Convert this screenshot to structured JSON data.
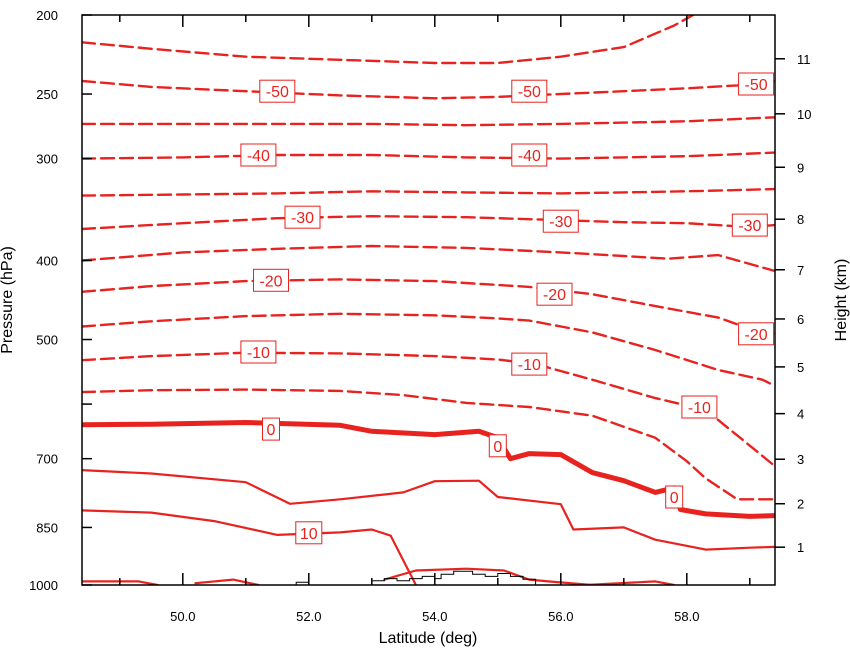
{
  "chart_data": {
    "type": "contour",
    "title": "",
    "xlabel": "Latitude (deg)",
    "ylabel": "Pressure (hPa)",
    "y2label": "Height (km)",
    "xlim": [
      48.4,
      59.4
    ],
    "ylim": [
      1000,
      200
    ],
    "yscale": "log",
    "x_ticks": [
      50,
      52,
      54,
      56,
      58
    ],
    "x_tick_labels": [
      "50.0",
      "52.0",
      "54.0",
      "56.0",
      "58.0"
    ],
    "y_ticks": [
      200,
      250,
      300,
      400,
      500,
      700,
      850,
      1000
    ],
    "y_tick_labels": [
      "200",
      "250",
      "300",
      "400",
      "500",
      "700",
      "850",
      "1000"
    ],
    "y2_ticks": [
      1,
      2,
      3,
      4,
      5,
      6,
      7,
      8,
      9,
      10,
      11
    ],
    "y2_tick_labels": [
      "1",
      "2",
      "3",
      "4",
      "5",
      "6",
      "7",
      "8",
      "9",
      "10",
      "11"
    ],
    "line_color": "#e8231f",
    "terrain_color": "#000000",
    "grid": false,
    "contours": [
      {
        "level": -55,
        "style": "dashed",
        "points": [
          [
            48.4,
            216
          ],
          [
            49.5,
            220
          ],
          [
            51,
            225
          ],
          [
            52.5,
            227
          ],
          [
            54,
            229
          ],
          [
            55,
            229
          ],
          [
            56,
            225
          ],
          [
            57,
            219
          ],
          [
            57.8,
            206
          ],
          [
            58.1,
            200
          ]
        ]
      },
      {
        "level": -50,
        "style": "dashed",
        "points": [
          [
            48.4,
            241
          ],
          [
            49.5,
            245
          ],
          [
            51,
            248
          ],
          [
            52.5,
            251
          ],
          [
            54,
            253
          ],
          [
            55,
            252
          ],
          [
            56,
            250
          ],
          [
            57,
            248
          ],
          [
            58,
            246
          ],
          [
            58.8,
            244
          ],
          [
            59.4,
            241
          ]
        ]
      },
      {
        "level": -45,
        "style": "dashed",
        "points": [
          [
            48.4,
            272
          ],
          [
            50,
            272
          ],
          [
            51.5,
            272
          ],
          [
            53,
            272
          ],
          [
            54.5,
            273
          ],
          [
            56,
            272
          ],
          [
            57,
            271
          ],
          [
            58,
            270
          ],
          [
            59.4,
            267
          ]
        ]
      },
      {
        "level": -40,
        "style": "dashed",
        "points": [
          [
            48.4,
            300
          ],
          [
            50,
            299
          ],
          [
            51.5,
            297
          ],
          [
            53,
            297
          ],
          [
            54.5,
            299
          ],
          [
            56,
            300
          ],
          [
            57,
            299
          ],
          [
            58,
            298
          ],
          [
            59.4,
            295
          ]
        ]
      },
      {
        "level": -35,
        "style": "dashed",
        "points": [
          [
            48.4,
            333
          ],
          [
            50,
            332
          ],
          [
            51.5,
            331
          ],
          [
            53,
            329
          ],
          [
            54.5,
            330
          ],
          [
            56,
            331
          ],
          [
            57,
            330
          ],
          [
            58,
            329
          ],
          [
            59.4,
            327
          ]
        ]
      },
      {
        "level": -30,
        "style": "dashed",
        "points": [
          [
            48.4,
            366
          ],
          [
            50,
            360
          ],
          [
            51.5,
            355
          ],
          [
            53,
            353
          ],
          [
            54.5,
            354
          ],
          [
            56,
            357
          ],
          [
            57,
            359
          ],
          [
            58,
            360
          ],
          [
            59,
            364
          ],
          [
            59.4,
            362
          ]
        ]
      },
      {
        "level": -25,
        "style": "dashed",
        "points": [
          [
            48.4,
            400
          ],
          [
            50,
            391
          ],
          [
            51.5,
            387
          ],
          [
            53,
            384
          ],
          [
            54.5,
            386
          ],
          [
            56,
            391
          ],
          [
            57,
            395
          ],
          [
            57.7,
            398
          ],
          [
            58.5,
            394
          ],
          [
            59.4,
            412
          ]
        ]
      },
      {
        "level": -20,
        "style": "dashed",
        "points": [
          [
            48.4,
            437
          ],
          [
            49.5,
            430
          ],
          [
            51,
            424
          ],
          [
            52.5,
            422
          ],
          [
            54,
            424
          ],
          [
            55.5,
            431
          ],
          [
            56.5,
            440
          ],
          [
            57.5,
            455
          ],
          [
            58.5,
            470
          ],
          [
            59.1,
            488
          ],
          [
            59.4,
            492
          ]
        ]
      },
      {
        "level": -15,
        "style": "dashed",
        "points": [
          [
            48.4,
            482
          ],
          [
            49.5,
            475
          ],
          [
            51,
            468
          ],
          [
            52.5,
            465
          ],
          [
            54,
            467
          ],
          [
            55,
            471
          ],
          [
            55.5,
            474
          ],
          [
            56.5,
            490
          ],
          [
            57.5,
            515
          ],
          [
            58.5,
            545
          ],
          [
            59.2,
            560
          ],
          [
            59.4,
            570
          ]
        ]
      },
      {
        "level": -10,
        "style": "dashed",
        "points": [
          [
            48.4,
            530
          ],
          [
            49.5,
            524
          ],
          [
            51,
            519
          ],
          [
            52.5,
            520
          ],
          [
            54,
            524
          ],
          [
            55,
            529
          ],
          [
            55.6,
            536
          ],
          [
            56.5,
            560
          ],
          [
            57.5,
            590
          ],
          [
            58.3,
            610
          ],
          [
            58.9,
            665
          ],
          [
            59.4,
            715
          ]
        ]
      },
      {
        "level": -5,
        "style": "dashed",
        "points": [
          [
            48.4,
            580
          ],
          [
            49.5,
            577
          ],
          [
            51,
            576
          ],
          [
            52.5,
            578
          ],
          [
            53.5,
            585
          ],
          [
            54.5,
            598
          ],
          [
            55.5,
            605
          ],
          [
            56.5,
            620
          ],
          [
            57.5,
            660
          ],
          [
            58,
            705
          ],
          [
            58.3,
            740
          ],
          [
            58.8,
            785
          ],
          [
            59.4,
            785
          ]
        ]
      },
      {
        "level": 0,
        "style": "thick",
        "points": [
          [
            48.4,
            636
          ],
          [
            49.5,
            635
          ],
          [
            51,
            632
          ],
          [
            52.5,
            637
          ],
          [
            53,
            648
          ],
          [
            54,
            654
          ],
          [
            54.7,
            648
          ],
          [
            55,
            660
          ],
          [
            55.2,
            700
          ],
          [
            55.5,
            690
          ],
          [
            56,
            692
          ],
          [
            56.5,
            728
          ],
          [
            57,
            745
          ],
          [
            57.5,
            770
          ],
          [
            57.8,
            760
          ],
          [
            57.9,
            808
          ],
          [
            58.3,
            818
          ],
          [
            59,
            824
          ],
          [
            59.4,
            822
          ]
        ]
      },
      {
        "level": 5,
        "style": "solid",
        "points": [
          [
            48.4,
            723
          ],
          [
            49.5,
            730
          ],
          [
            51,
            748
          ],
          [
            51.7,
            795
          ],
          [
            52.5,
            785
          ],
          [
            53.5,
            770
          ],
          [
            54,
            746
          ],
          [
            54.7,
            745
          ],
          [
            55,
            780
          ],
          [
            56,
            796
          ],
          [
            56.2,
            855
          ],
          [
            57,
            850
          ],
          [
            57.5,
            880
          ],
          [
            58.3,
            905
          ],
          [
            59,
            900
          ],
          [
            59.4,
            898
          ]
        ]
      },
      {
        "level": 10,
        "style": "solid",
        "points": [
          [
            48.4,
            810
          ],
          [
            49.5,
            815
          ],
          [
            50.5,
            835
          ],
          [
            51.5,
            868
          ],
          [
            52.5,
            862
          ],
          [
            53,
            855
          ],
          [
            53.3,
            870
          ],
          [
            53.7,
            1000
          ]
        ]
      },
      {
        "level": 10,
        "style": "solid",
        "points": [
          [
            53.2,
            985
          ],
          [
            53.7,
            960
          ],
          [
            54.5,
            955
          ],
          [
            55.1,
            960
          ],
          [
            55.5,
            985
          ],
          [
            55.8,
            990
          ],
          [
            56.5,
            1000
          ]
        ]
      },
      {
        "level": 15,
        "style": "solid",
        "points": [
          [
            48.4,
            990
          ],
          [
            49.3,
            990
          ],
          [
            49.6,
            1000
          ]
        ]
      },
      {
        "level": 15,
        "style": "solid",
        "points": [
          [
            50.2,
            995
          ],
          [
            50.8,
            985
          ],
          [
            51.2,
            1000
          ]
        ]
      },
      {
        "level": 15,
        "style": "solid",
        "points": [
          [
            56.4,
            1000
          ],
          [
            57.5,
            990
          ],
          [
            57.8,
            1000
          ]
        ]
      }
    ],
    "contour_labels": [
      {
        "text": "-50",
        "x": 51.5,
        "p": 248
      },
      {
        "text": "-50",
        "x": 55.5,
        "p": 248
      },
      {
        "text": "-50",
        "x": 59.1,
        "p": 243
      },
      {
        "text": "-40",
        "x": 51.2,
        "p": 297
      },
      {
        "text": "-40",
        "x": 55.5,
        "p": 297
      },
      {
        "text": "-30",
        "x": 51.9,
        "p": 354
      },
      {
        "text": "-30",
        "x": 56.0,
        "p": 358
      },
      {
        "text": "-30",
        "x": 59.0,
        "p": 362
      },
      {
        "text": "-20",
        "x": 51.4,
        "p": 423
      },
      {
        "text": "-20",
        "x": 55.9,
        "p": 440
      },
      {
        "text": "-20",
        "x": 59.1,
        "p": 492
      },
      {
        "text": "-10",
        "x": 51.2,
        "p": 518
      },
      {
        "text": "-10",
        "x": 55.5,
        "p": 536
      },
      {
        "text": "-10",
        "x": 58.2,
        "p": 605
      },
      {
        "text": "0",
        "x": 51.4,
        "p": 644
      },
      {
        "text": "0",
        "x": 55.0,
        "p": 675
      },
      {
        "text": "0",
        "x": 57.8,
        "p": 780
      },
      {
        "text": "10",
        "x": 52.0,
        "p": 863
      }
    ],
    "terrain": [
      [
        51.8,
        1000
      ],
      [
        51.8,
        992
      ],
      [
        52.0,
        992
      ],
      [
        52.0,
        1000
      ],
      [
        53.0,
        1000
      ],
      [
        53.0,
        988
      ],
      [
        53.2,
        988
      ],
      [
        53.2,
        982
      ],
      [
        53.4,
        982
      ],
      [
        53.4,
        988
      ],
      [
        53.6,
        988
      ],
      [
        53.6,
        982
      ],
      [
        53.8,
        982
      ],
      [
        53.8,
        976
      ],
      [
        54.0,
        976
      ],
      [
        54.0,
        982
      ],
      [
        54.1,
        982
      ],
      [
        54.1,
        970
      ],
      [
        54.3,
        970
      ],
      [
        54.3,
        962
      ],
      [
        54.6,
        962
      ],
      [
        54.6,
        970
      ],
      [
        54.8,
        970
      ],
      [
        54.8,
        976
      ],
      [
        55.0,
        976
      ],
      [
        55.0,
        968
      ],
      [
        55.2,
        968
      ],
      [
        55.2,
        976
      ],
      [
        55.4,
        976
      ],
      [
        55.4,
        984
      ],
      [
        55.6,
        984
      ],
      [
        55.6,
        1000
      ]
    ]
  }
}
